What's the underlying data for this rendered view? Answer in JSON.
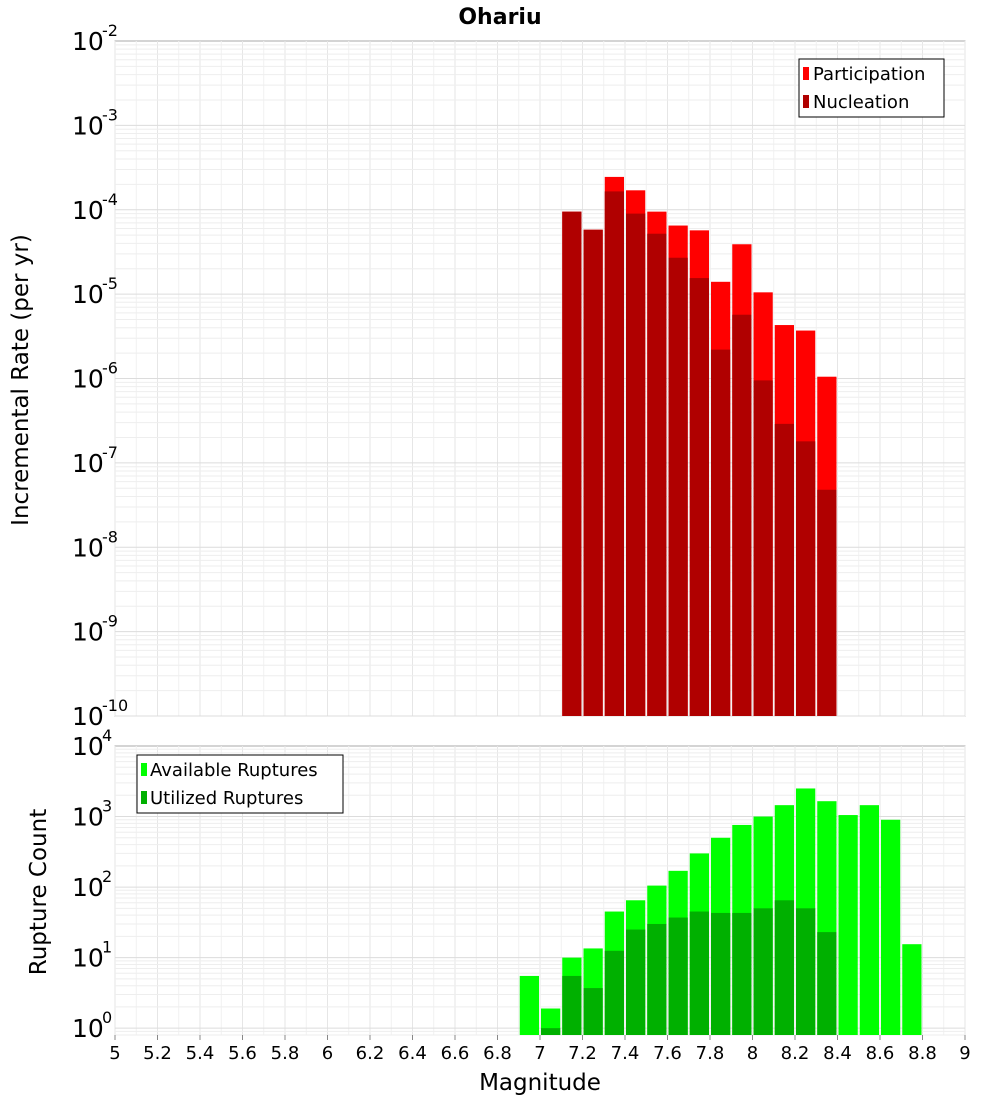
{
  "chart_data": [
    {
      "type": "bar",
      "title": "Ohariu",
      "xlabel": "Magnitude",
      "ylabel": "Incremental Rate (per yr)",
      "yscale": "log",
      "ylim": [
        1e-10,
        0.01
      ],
      "xlim": [
        5,
        9
      ],
      "yticks": [
        {
          "base": "10",
          "exp": "-10"
        },
        {
          "base": "10",
          "exp": "-9"
        },
        {
          "base": "10",
          "exp": "-8"
        },
        {
          "base": "10",
          "exp": "-7"
        },
        {
          "base": "10",
          "exp": "-6"
        },
        {
          "base": "10",
          "exp": "-5"
        },
        {
          "base": "10",
          "exp": "-4"
        },
        {
          "base": "10",
          "exp": "-3"
        },
        {
          "base": "10",
          "exp": "-2"
        }
      ],
      "x": [
        7.15,
        7.25,
        7.35,
        7.45,
        7.55,
        7.65,
        7.75,
        7.85,
        7.95,
        8.05,
        8.15,
        8.25,
        8.35
      ],
      "series": [
        {
          "name": "Participation",
          "color": "#ff0000",
          "values": [
            9.5e-05,
            5.8e-05,
            0.000245,
            0.00017,
            9.5e-05,
            6.5e-05,
            5.7e-05,
            1.4e-05,
            3.9e-05,
            1.05e-05,
            4.3e-06,
            3.7e-06,
            1.05e-06
          ]
        },
        {
          "name": "Nucleation",
          "color": "#b00000",
          "values": [
            9.5e-05,
            5.8e-05,
            0.000165,
            9e-05,
            5.2e-05,
            2.7e-05,
            1.55e-05,
            2.2e-06,
            5.7e-06,
            9.5e-07,
            2.9e-07,
            1.8e-07,
            4.8e-08
          ]
        }
      ],
      "legend_position": "top-right"
    },
    {
      "type": "bar",
      "xlabel": "Magnitude",
      "ylabel": "Rupture Count",
      "yscale": "log",
      "ylim": [
        0.8,
        10000
      ],
      "xlim": [
        5,
        9
      ],
      "yticks": [
        {
          "base": "10",
          "exp": "0"
        },
        {
          "base": "10",
          "exp": "1"
        },
        {
          "base": "10",
          "exp": "2"
        },
        {
          "base": "10",
          "exp": "3"
        },
        {
          "base": "10",
          "exp": "4"
        }
      ],
      "xticks": [
        "5",
        "5.2",
        "5.4",
        "5.6",
        "5.8",
        "6",
        "6.2",
        "6.4",
        "6.6",
        "6.8",
        "7",
        "7.2",
        "7.4",
        "7.6",
        "7.8",
        "8",
        "8.2",
        "8.4",
        "8.6",
        "8.8",
        "9"
      ],
      "x": [
        6.95,
        7.05,
        7.15,
        7.25,
        7.35,
        7.45,
        7.55,
        7.65,
        7.75,
        7.85,
        7.95,
        8.05,
        8.15,
        8.25,
        8.35,
        8.45,
        8.55,
        8.65,
        8.75
      ],
      "series": [
        {
          "name": "Available Ruptures",
          "color": "#00ff00",
          "values": [
            5.5,
            1.9,
            10,
            13.5,
            45,
            65,
            105,
            170,
            300,
            500,
            760,
            1000,
            1450,
            2500,
            1650,
            1050,
            1450,
            900,
            15.5
          ]
        },
        {
          "name": "Utilized Ruptures",
          "color": "#00b000",
          "values": [
            0,
            1,
            5.5,
            3.7,
            12.5,
            25,
            30,
            37,
            45,
            43,
            43,
            50,
            65,
            50,
            23,
            0,
            0,
            0,
            0
          ]
        }
      ],
      "legend_position": "top-left"
    }
  ]
}
